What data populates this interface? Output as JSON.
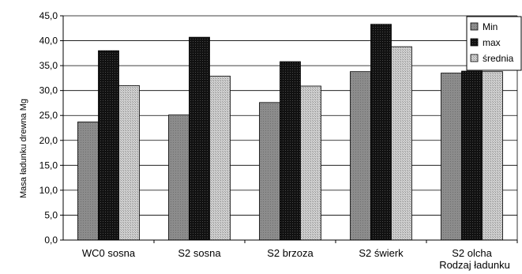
{
  "chart_data": {
    "type": "bar",
    "categories": [
      "WC0 sosna",
      "S2 sosna",
      "S2 brzoza",
      "S2 świerk",
      "S2 olcha"
    ],
    "series": [
      {
        "name": "Min",
        "values": [
          23.7,
          25.1,
          27.6,
          33.8,
          33.5
        ],
        "color": "#8c8c8c",
        "pattern": "fine-dots"
      },
      {
        "name": "max",
        "values": [
          38.0,
          40.7,
          35.8,
          43.3,
          33.9
        ],
        "color": "#1a1a1a",
        "pattern": "dense-dark"
      },
      {
        "name": "średnia",
        "values": [
          31.0,
          32.9,
          30.9,
          38.8,
          33.8
        ],
        "color": "#c4c4c4",
        "pattern": "light-dots"
      }
    ],
    "ylabel": "Masa ładunku drewna Mg",
    "xlabel": "Rodzaj ładunku",
    "ylim": [
      0,
      45
    ],
    "yticks": [
      "0,0",
      "5,0",
      "10,0",
      "15,0",
      "20,0",
      "25,0",
      "30,0",
      "35,0",
      "40,0",
      "45,0"
    ],
    "grid": true,
    "legend_position": "top-right"
  }
}
